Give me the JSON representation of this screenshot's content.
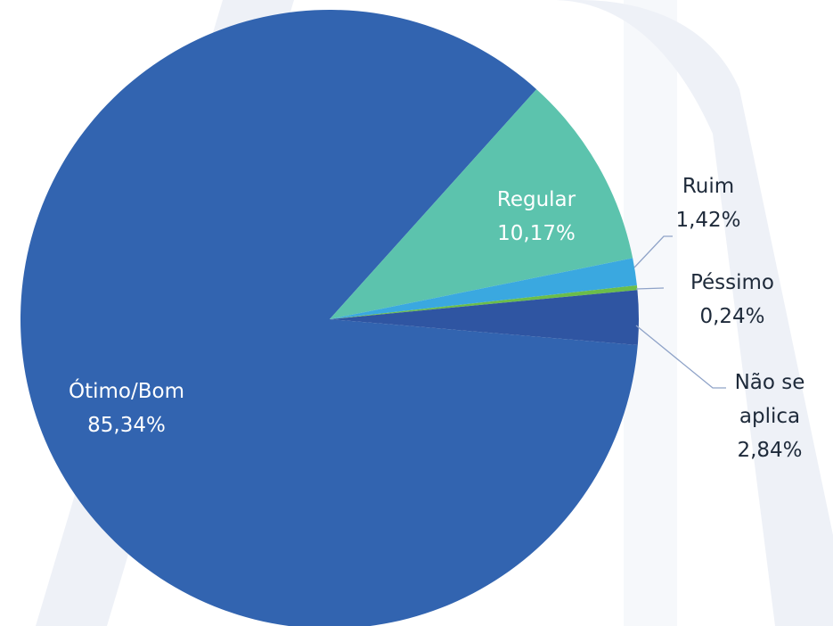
{
  "chart_data": {
    "type": "pie",
    "categories": [
      "Ótimo/Bom",
      "Regular",
      "Ruim",
      "Péssimo",
      "Não se aplica"
    ],
    "values": [
      85.34,
      10.17,
      1.42,
      0.24,
      2.84
    ],
    "value_labels": [
      "85,34%",
      "10,17%",
      "1,42%",
      "0,24%",
      "2,84%"
    ],
    "colors": [
      "#3264b0",
      "#5cc3ad",
      "#3aa8e0",
      "#6bbd4a",
      "#2f55a2"
    ]
  }
}
